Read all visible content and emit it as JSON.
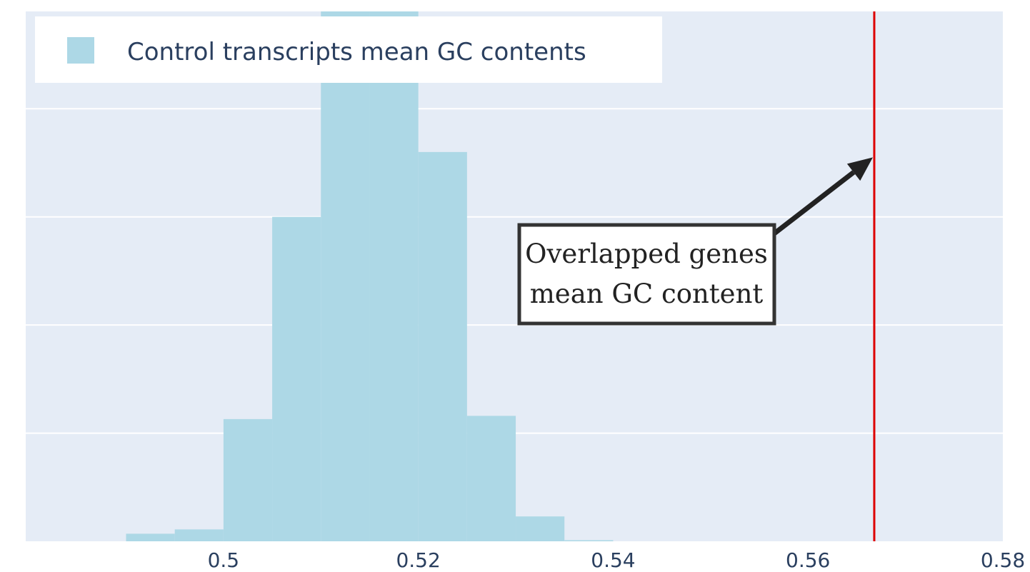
{
  "chart_data": {
    "type": "bar",
    "title": "",
    "xlabel": "",
    "ylabel": "",
    "xlim": [
      0.4797,
      0.58
    ],
    "ylim": [
      0,
      4.9
    ],
    "grid": true,
    "y_tick_labels_visible": false,
    "x_ticks": [
      "0.5",
      "0.52",
      "0.54",
      "0.56",
      "0.58"
    ],
    "x_tick_values": [
      0.5,
      0.52,
      0.54,
      0.56,
      0.58
    ],
    "y_gridlines": [
      1,
      2,
      3,
      4,
      5
    ],
    "series": [
      {
        "name": "Control transcripts mean GC contents",
        "color": "#add8e6",
        "bins": [
          {
            "x0": 0.49,
            "x1": 0.495,
            "value": 0.07
          },
          {
            "x0": 0.495,
            "x1": 0.5,
            "value": 0.11
          },
          {
            "x0": 0.5,
            "x1": 0.505,
            "value": 1.13
          },
          {
            "x0": 0.505,
            "x1": 0.51,
            "value": 3.0
          },
          {
            "x0": 0.51,
            "x1": 0.515,
            "value": 5.0
          },
          {
            "x0": 0.515,
            "x1": 0.52,
            "value": 5.0
          },
          {
            "x0": 0.52,
            "x1": 0.525,
            "value": 3.6
          },
          {
            "x0": 0.525,
            "x1": 0.53,
            "value": 1.16
          },
          {
            "x0": 0.53,
            "x1": 0.535,
            "value": 0.23
          },
          {
            "x0": 0.535,
            "x1": 0.54,
            "value": 0.01
          }
        ]
      }
    ],
    "reference_line": {
      "x": 0.5668,
      "color": "#dd0000"
    },
    "annotation": {
      "lines": [
        "Overlapped genes",
        "mean GC content"
      ],
      "arrow_to": {
        "x": 0.5668,
        "y": 3.55
      }
    },
    "legend": {
      "placement": "top-left"
    },
    "colors": {
      "plot_bg": "#e5ecf6",
      "grid": "#ffffff",
      "text": "#2a3f5f"
    }
  }
}
